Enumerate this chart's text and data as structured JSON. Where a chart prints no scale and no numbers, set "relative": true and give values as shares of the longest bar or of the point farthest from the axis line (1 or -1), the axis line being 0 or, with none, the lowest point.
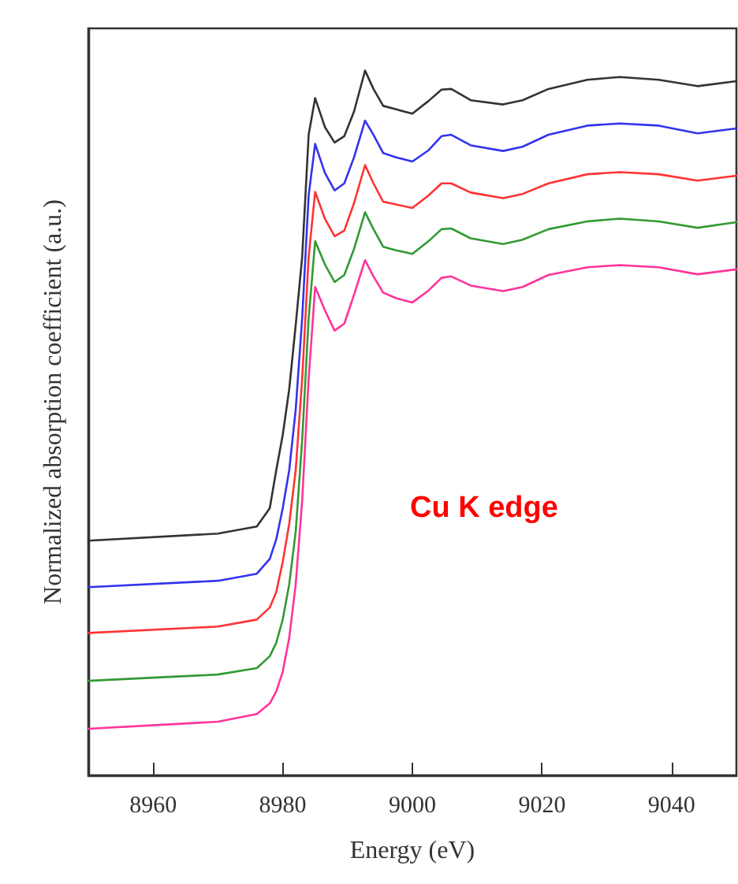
{
  "chart_data": {
    "type": "line",
    "relative": true,
    "xlabel": "Energy (eV)",
    "ylabel": "Normalized absorption coefficient (a.u.)",
    "annotations": [
      "Cu K edge"
    ],
    "xlim": [
      8950,
      9050
    ],
    "xticks": [
      8960,
      8980,
      9000,
      9020,
      9040
    ],
    "grid": false,
    "marker": "none",
    "line_style": "solid",
    "x": [
      8950,
      8970,
      8976,
      8978,
      8979,
      8980,
      8981,
      8982,
      8983,
      8984,
      8985,
      8986.5,
      8988,
      8989.5,
      8991,
      8992.7,
      8994,
      8995.5,
      8997.5,
      9000,
      9002.5,
      9004.5,
      9006,
      9009,
      9014,
      9017,
      9021,
      9027,
      9032,
      9038,
      9044,
      9050
    ],
    "series": [
      {
        "color": "#333333",
        "values": [
          0.333,
          0.343,
          0.353,
          0.379,
          0.433,
          0.483,
          0.548,
          0.639,
          0.736,
          0.909,
          0.961,
          0.92,
          0.898,
          0.907,
          0.942,
          1,
          0.974,
          0.95,
          0.945,
          0.939,
          0.957,
          0.973,
          0.974,
          0.958,
          0.952,
          0.958,
          0.974,
          0.987,
          0.991,
          0.987,
          0.978,
          0.985
        ]
      },
      {
        "color": "#3333ee",
        "values": [
          0.267,
          0.276,
          0.286,
          0.307,
          0.335,
          0.379,
          0.433,
          0.519,
          0.649,
          0.823,
          0.896,
          0.855,
          0.83,
          0.84,
          0.877,
          0.929,
          0.909,
          0.883,
          0.877,
          0.871,
          0.887,
          0.907,
          0.909,
          0.894,
          0.886,
          0.892,
          0.909,
          0.922,
          0.925,
          0.922,
          0.911,
          0.918
        ]
      },
      {
        "color": "#ff3333",
        "values": [
          0.202,
          0.211,
          0.221,
          0.238,
          0.26,
          0.303,
          0.357,
          0.433,
          0.563,
          0.736,
          0.828,
          0.79,
          0.765,
          0.773,
          0.812,
          0.866,
          0.84,
          0.814,
          0.81,
          0.805,
          0.823,
          0.84,
          0.84,
          0.827,
          0.819,
          0.825,
          0.84,
          0.853,
          0.856,
          0.853,
          0.844,
          0.851
        ]
      },
      {
        "color": "#339933",
        "values": [
          0.134,
          0.143,
          0.152,
          0.169,
          0.188,
          0.221,
          0.271,
          0.346,
          0.476,
          0.649,
          0.758,
          0.725,
          0.7,
          0.71,
          0.747,
          0.799,
          0.775,
          0.75,
          0.745,
          0.74,
          0.758,
          0.775,
          0.776,
          0.762,
          0.754,
          0.76,
          0.775,
          0.786,
          0.79,
          0.786,
          0.777,
          0.785
        ]
      },
      {
        "color": "#ff3399",
        "values": [
          0.066,
          0.076,
          0.087,
          0.102,
          0.119,
          0.147,
          0.195,
          0.271,
          0.39,
          0.563,
          0.693,
          0.66,
          0.631,
          0.641,
          0.682,
          0.731,
          0.708,
          0.685,
          0.677,
          0.671,
          0.688,
          0.706,
          0.708,
          0.695,
          0.687,
          0.693,
          0.71,
          0.721,
          0.724,
          0.721,
          0.711,
          0.718
        ]
      }
    ]
  }
}
